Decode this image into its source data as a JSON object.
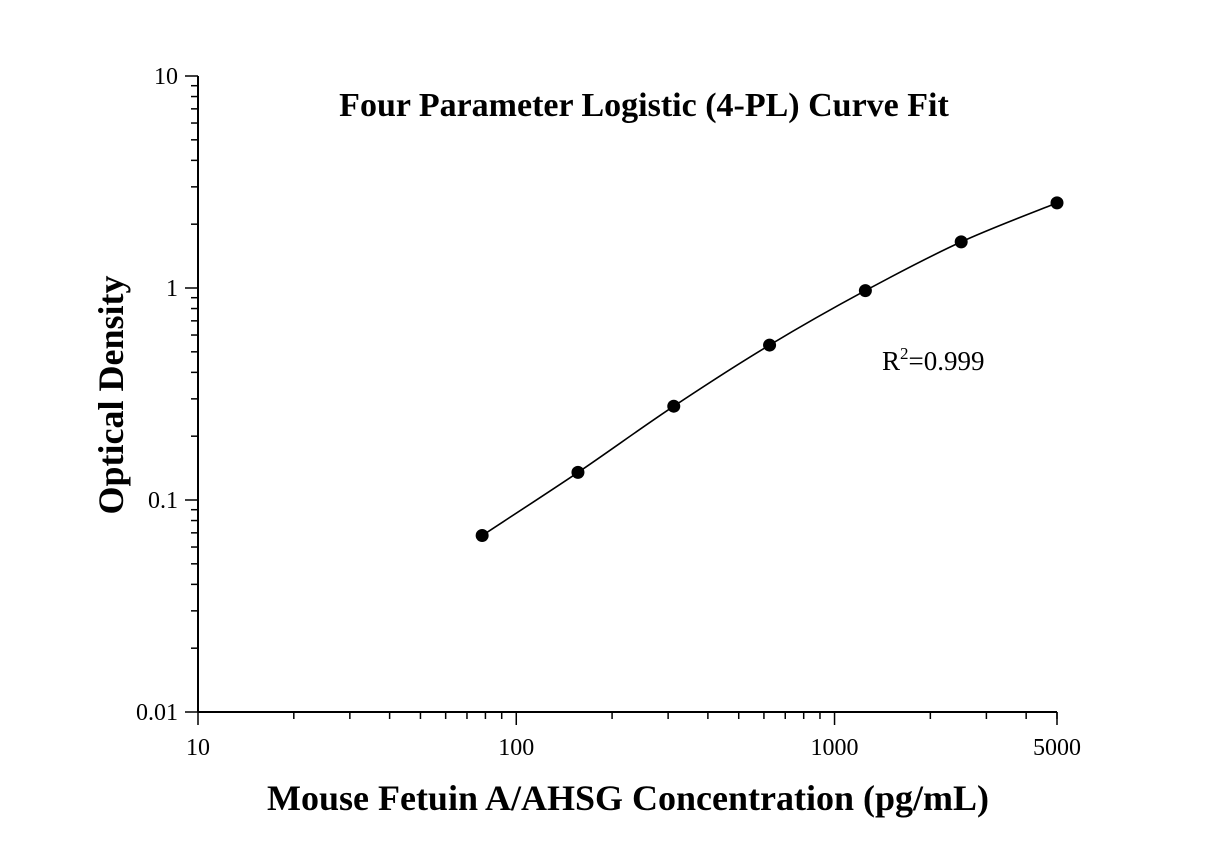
{
  "chart_data": {
    "type": "scatter",
    "title": "Four Parameter Logistic (4-PL) Curve Fit",
    "xlabel": "Mouse Fetuin A/AHSG Concentration (pg/mL)",
    "ylabel": "Optical Density",
    "x_scale": "log",
    "y_scale": "log",
    "xlim": [
      10,
      5000
    ],
    "ylim": [
      0.01,
      10
    ],
    "x_ticks": [
      {
        "value": 10,
        "label": "10"
      },
      {
        "value": 100,
        "label": "100"
      },
      {
        "value": 1000,
        "label": "1000"
      },
      {
        "value": 5000,
        "label": "5000"
      }
    ],
    "y_ticks": [
      {
        "value": 0.01,
        "label": "0.01"
      },
      {
        "value": 0.1,
        "label": "0.1"
      },
      {
        "value": 1,
        "label": "1"
      },
      {
        "value": 10,
        "label": "10"
      }
    ],
    "grid": false,
    "points": {
      "x": [
        78.13,
        156.25,
        312.5,
        625,
        1250,
        2500,
        5000
      ],
      "y": [
        0.068,
        0.135,
        0.277,
        0.538,
        0.972,
        1.65,
        2.52
      ]
    },
    "fit_curve": "4-PL",
    "annotation": {
      "base": "R",
      "sup": "2",
      "rest": "=0.999"
    },
    "colors": {
      "points": "#000000",
      "line": "#000000",
      "axes": "#000000"
    }
  }
}
